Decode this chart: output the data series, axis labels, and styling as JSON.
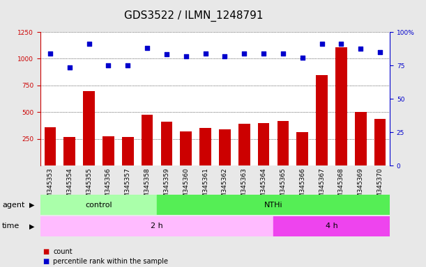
{
  "title": "GDS3522 / ILMN_1248791",
  "samples": [
    "GSM345353",
    "GSM345354",
    "GSM345355",
    "GSM345356",
    "GSM345357",
    "GSM345358",
    "GSM345359",
    "GSM345360",
    "GSM345361",
    "GSM345362",
    "GSM345363",
    "GSM345364",
    "GSM345365",
    "GSM345366",
    "GSM345367",
    "GSM345368",
    "GSM345369",
    "GSM345370"
  ],
  "counts": [
    360,
    270,
    700,
    275,
    270,
    475,
    410,
    320,
    355,
    340,
    390,
    395,
    415,
    315,
    845,
    1110,
    505,
    435
  ],
  "percentile_raw": [
    1050,
    920,
    1140,
    940,
    940,
    1100,
    1040,
    1025,
    1050,
    1020,
    1050,
    1050,
    1050,
    1010,
    1140,
    1140,
    1095,
    1060
  ],
  "ylim_left": [
    0,
    1250
  ],
  "yticks_left": [
    250,
    500,
    750,
    1000,
    1250
  ],
  "yticks_right": [
    0,
    25,
    50,
    75,
    100
  ],
  "agent_groups": [
    {
      "label": "control",
      "start": 0,
      "end": 6,
      "color": "#aaffaa"
    },
    {
      "label": "NTHi",
      "start": 6,
      "end": 18,
      "color": "#55ee55"
    }
  ],
  "time_groups": [
    {
      "label": "2 h",
      "start": 0,
      "end": 12,
      "color": "#ffbbff"
    },
    {
      "label": "4 h",
      "start": 12,
      "end": 18,
      "color": "#ee44ee"
    }
  ],
  "bar_color": "#cc0000",
  "dot_color": "#0000cc",
  "grid_color": "black",
  "bg_color": "#e8e8e8",
  "plot_bg": "white",
  "ylabel_left_color": "#cc0000",
  "ylabel_right_color": "#0000cc",
  "title_fontsize": 11,
  "tick_fontsize": 6.5,
  "label_fontsize": 8,
  "bar_width": 0.6
}
